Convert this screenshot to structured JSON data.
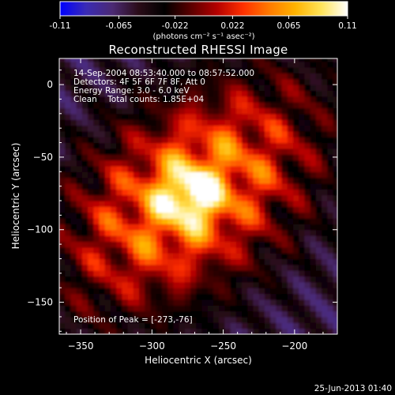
{
  "chart_data": {
    "type": "heatmap",
    "title": "Reconstructed RHESSI Image",
    "xlabel": "Heliocentric X (arcsec)",
    "ylabel": "Heliocentric Y (arcsec)",
    "xlim": [
      -365,
      -170
    ],
    "ylim": [
      -172,
      18
    ],
    "xticks": [
      -350,
      -300,
      -250,
      -200
    ],
    "yticks": [
      0,
      -50,
      -100,
      -150
    ],
    "colorbar": {
      "label": "(photons cm⁻² s⁻¹ asec⁻²)",
      "range": [
        -0.11,
        0.11
      ],
      "ticks": [
        "-0.11",
        "-0.065",
        "-0.022",
        "0.022",
        "0.065",
        "0.11"
      ],
      "colormap": [
        "#0000ff",
        "#3a2bb5",
        "#4b2a74",
        "#2a0c18",
        "#000000",
        "#5a0000",
        "#b40000",
        "#ff3000",
        "#ff7a00",
        "#ffb300",
        "#ffe45a",
        "#ffffff"
      ]
    },
    "annotations": [
      "14-Sep-2004 08:53:40.000 to 08:57:52.000",
      "Detectors: 4F 5F 6F 7F 8F, Att 0",
      "Energy Range: 3.0 - 6.0 keV",
      "Clean    Total counts: 1.85E+04"
    ],
    "peak_label": "Position of Peak = [-273,-76]",
    "peak": [
      -273,
      -76
    ],
    "grid": false
  },
  "footer": {
    "timestamp": "25-Jun-2013 01:40"
  }
}
